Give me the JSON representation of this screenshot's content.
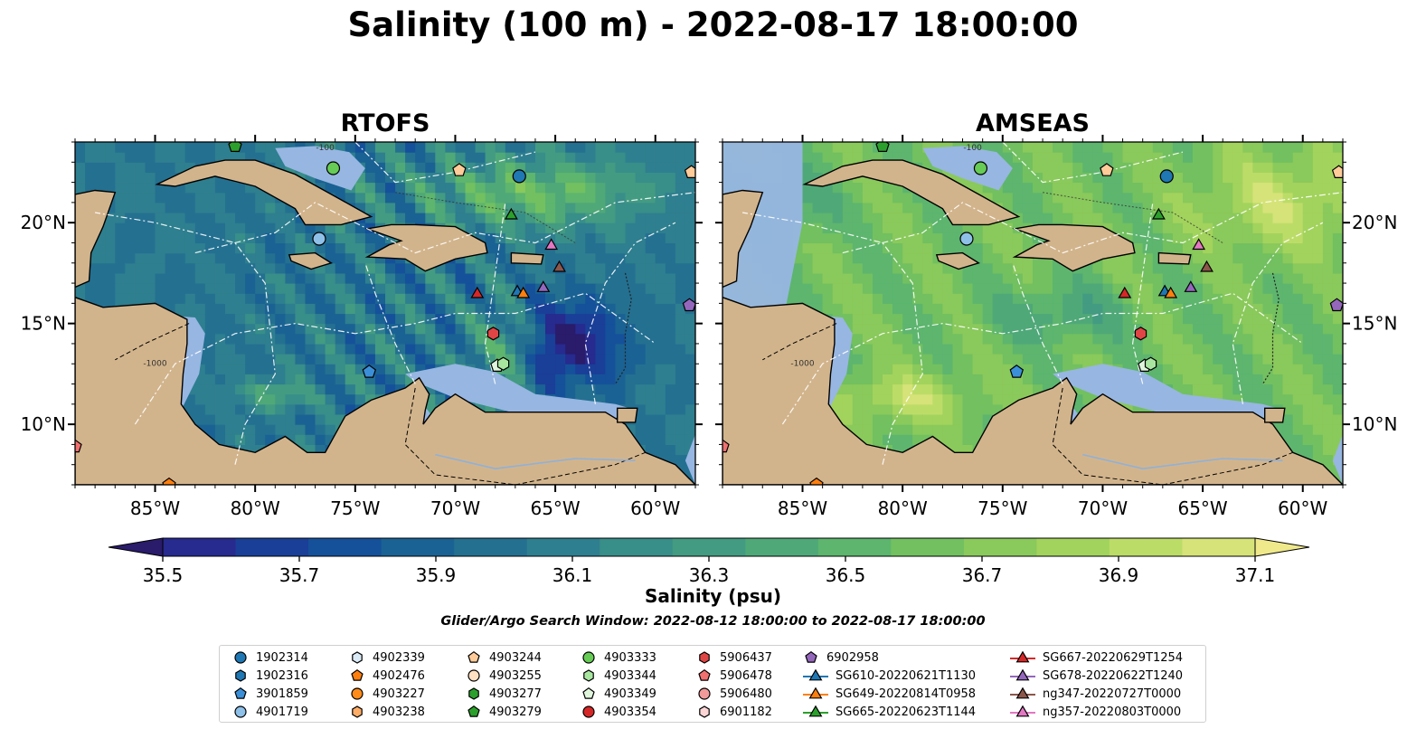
{
  "title": "Salinity (100 m) - 2022-08-17 18:00:00",
  "panels": [
    {
      "title": "RTOFS",
      "model": "rtofs"
    },
    {
      "title": "AMSEAS",
      "model": "amseas"
    }
  ],
  "map": {
    "lon_range": [
      -89,
      -58
    ],
    "lat_range": [
      7,
      24
    ],
    "lon_ticks": [
      -85,
      -80,
      -75,
      -70,
      -65,
      -60
    ],
    "lon_tick_labels": [
      "85°W",
      "80°W",
      "75°W",
      "70°W",
      "65°W",
      "60°W"
    ],
    "lat_ticks": [
      20,
      15,
      10
    ],
    "lat_tick_labels": [
      "20°N",
      "15°N",
      "10°N"
    ],
    "contour_labels": [
      "-1000",
      "-100"
    ],
    "land_color": "#d2b48c",
    "shelf_color": "#97b6e1"
  },
  "colorbar": {
    "label": "Salinity (psu)",
    "min": 35.4,
    "max": 37.2,
    "step": 0.1,
    "extend": "both",
    "ticks": [
      35.5,
      35.7,
      35.9,
      36.1,
      36.3,
      36.5,
      36.7,
      36.9,
      37.1
    ],
    "tick_labels": [
      "35.5",
      "35.7",
      "35.9",
      "36.1",
      "36.3",
      "36.5",
      "36.7",
      "36.9",
      "37.1"
    ],
    "colormap": "haline",
    "colors": [
      "#2a1b6b",
      "#272a8e",
      "#1a3f98",
      "#15519a",
      "#1a6293",
      "#247091",
      "#2e7f8f",
      "#388e89",
      "#439b82",
      "#4fa878",
      "#5db56e",
      "#72c060",
      "#8ac95b",
      "#a2d35d",
      "#bcdc68",
      "#d6e378",
      "#efe98b"
    ]
  },
  "search_window": "Glider/Argo Search Window: 2022-08-12 18:00:00 to 2022-08-17 18:00:00",
  "legend": {
    "items": [
      {
        "label": "1902314",
        "marker": "circle",
        "color": "#1f77b4"
      },
      {
        "label": "1902316",
        "marker": "hexagon",
        "color": "#1f77b4"
      },
      {
        "label": "3901859",
        "marker": "pentagon",
        "color": "#3b8fd8"
      },
      {
        "label": "4901719",
        "marker": "circle",
        "color": "#8ec0e8"
      },
      {
        "label": "4902339",
        "marker": "hexagon",
        "color": "#dbeaf7"
      },
      {
        "label": "4902476",
        "marker": "pentagon",
        "color": "#ff7f0e"
      },
      {
        "label": "4903227",
        "marker": "circle",
        "color": "#ff8c1a"
      },
      {
        "label": "4903238",
        "marker": "hexagon",
        "color": "#ffad66"
      },
      {
        "label": "4903244",
        "marker": "pentagon",
        "color": "#ffcc99"
      },
      {
        "label": "4903255",
        "marker": "circle",
        "color": "#ffe0c2"
      },
      {
        "label": "4903277",
        "marker": "hexagon",
        "color": "#2ca02c"
      },
      {
        "label": "4903279",
        "marker": "pentagon",
        "color": "#2ca02c"
      },
      {
        "label": "4903333",
        "marker": "circle",
        "color": "#66cc55"
      },
      {
        "label": "4903344",
        "marker": "hexagon",
        "color": "#a8e6a0"
      },
      {
        "label": "4903349",
        "marker": "pentagon",
        "color": "#e0f6dc"
      },
      {
        "label": "4903354",
        "marker": "circle",
        "color": "#d62728"
      },
      {
        "label": "5906437",
        "marker": "hexagon",
        "color": "#e04545"
      },
      {
        "label": "5906478",
        "marker": "pentagon",
        "color": "#f07070"
      },
      {
        "label": "5906480",
        "marker": "circle",
        "color": "#f29a9a"
      },
      {
        "label": "6901182",
        "marker": "hexagon",
        "color": "#fcd5d5"
      },
      {
        "label": "6902958",
        "marker": "pentagon",
        "color": "#9467bd"
      },
      {
        "label": "SG610-20220621T1130",
        "marker": "triangle-line",
        "color": "#1f77b4"
      },
      {
        "label": "SG649-20220814T0958",
        "marker": "triangle-line",
        "color": "#ff7f0e"
      },
      {
        "label": "SG665-20220623T1144",
        "marker": "triangle-line",
        "color": "#2ca02c"
      },
      {
        "label": "SG667-20220629T1254",
        "marker": "triangle-line",
        "color": "#d62728"
      },
      {
        "label": "SG678-20220622T1240",
        "marker": "triangle-line",
        "color": "#9467bd"
      },
      {
        "label": "ng347-20220727T0000",
        "marker": "triangle-line",
        "color": "#8c564b"
      },
      {
        "label": "ng357-20220803T0000",
        "marker": "triangle-line",
        "color": "#e377c2"
      }
    ]
  },
  "observations": [
    {
      "id": "1902314",
      "lon": -66.8,
      "lat": 22.3
    },
    {
      "id": "4903333",
      "lon": -76.1,
      "lat": 22.7
    },
    {
      "id": "4903244",
      "lon": -69.8,
      "lat": 22.6
    },
    {
      "id": "4903244",
      "lon": -58.2,
      "lat": 22.5
    },
    {
      "id": "4903279",
      "lon": -81.0,
      "lat": 23.8
    },
    {
      "id": "4901719",
      "lon": -76.8,
      "lat": 19.2
    },
    {
      "id": "SG665-20220623T1144",
      "lon": -67.2,
      "lat": 20.4
    },
    {
      "id": "ng357-20220803T0000",
      "lon": -65.2,
      "lat": 18.9
    },
    {
      "id": "ng347-20220727T0000",
      "lon": -64.8,
      "lat": 17.8
    },
    {
      "id": "SG667-20220629T1254",
      "lon": -68.9,
      "lat": 16.5
    },
    {
      "id": "SG610-20220621T1130",
      "lon": -66.9,
      "lat": 16.6
    },
    {
      "id": "SG649-20220814T0958",
      "lon": -66.6,
      "lat": 16.5
    },
    {
      "id": "SG678-20220622T1240",
      "lon": -65.6,
      "lat": 16.8
    },
    {
      "id": "6902958",
      "lon": -58.3,
      "lat": 15.9
    },
    {
      "id": "5906437",
      "lon": -68.1,
      "lat": 14.5
    },
    {
      "id": "4903349",
      "lon": -67.9,
      "lat": 12.9
    },
    {
      "id": "4903344",
      "lon": -67.6,
      "lat": 13.0
    },
    {
      "id": "3901859",
      "lon": -74.3,
      "lat": 12.6
    },
    {
      "id": "5906478",
      "lon": -89.0,
      "lat": 8.9
    },
    {
      "id": "4902476",
      "lon": -84.3,
      "lat": 7.0
    }
  ]
}
